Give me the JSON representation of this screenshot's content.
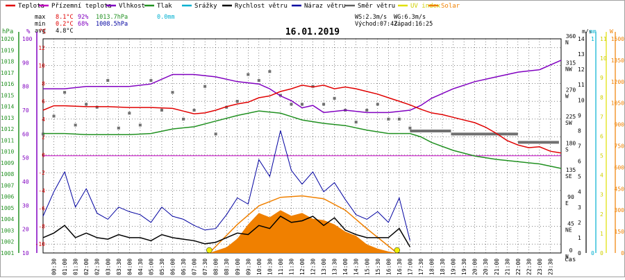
{
  "chart_data": {
    "type": "line",
    "title": "16.01.2019",
    "legend": [
      {
        "name": "Teplota",
        "color": "#e00000"
      },
      {
        "name": "Přízemní teplota",
        "color": "#c000c0"
      },
      {
        "name": "Vlhkost",
        "color": "#8000c0"
      },
      {
        "name": "Tlak",
        "color": "#209020"
      },
      {
        "name": "Srážky",
        "color": "#00b0d0"
      },
      {
        "name": "Rychlost větru",
        "color": "#000000"
      },
      {
        "name": "Náraz větru",
        "color": "#0000a0"
      },
      {
        "name": "Směr větru",
        "color": "#606060"
      },
      {
        "name": "UV index",
        "color": "#e0e000"
      },
      {
        "name": "Solar",
        "color": "#f08000"
      }
    ],
    "stats": {
      "max_label": "max",
      "max_temp": "8.1°C",
      "max_hum": "92%",
      "max_press": "1013.7hPa",
      "max_rain": "0.0mm",
      "min_label": "min",
      "min_temp": "0.2°C",
      "min_hum": "68%",
      "min_press": "1008.5hPa",
      "avg_label": "avg",
      "avg_temp": "4.8°C"
    },
    "wind_info": {
      "ws": "WS:2.3m/s",
      "wg": "WG:6.3m/s",
      "sunrise": "Východ:07:42",
      "sunset": "Západ:16:25"
    },
    "axes": {
      "hpa_unit": "hPa",
      "hpa_ticks": [
        "1001",
        "1002",
        "1003",
        "1004",
        "1005",
        "1006",
        "1007",
        "1008",
        "1009",
        "1010",
        "1011",
        "1012",
        "1013",
        "1014",
        "1015",
        "1016",
        "1017",
        "1018",
        "1019",
        "1020"
      ],
      "hpa_range": [
        1001,
        1020
      ],
      "pct_unit": "%",
      "pct_ticks": [
        "10",
        "20",
        "30",
        "40",
        "50",
        "60",
        "70",
        "80",
        "90",
        "100"
      ],
      "pct_range": [
        10,
        100
      ],
      "temp_unit": "°C",
      "temp_ticks": [
        "-10",
        "-8",
        "-6",
        "-4",
        "-2",
        "0",
        "2",
        "4",
        "6",
        "8",
        "10",
        "12"
      ],
      "temp_range": [
        -11,
        13
      ],
      "dir_ticks": [
        {
          "deg": "0",
          "dir": "N"
        },
        {
          "deg": "45",
          "dir": "NE"
        },
        {
          "deg": "90",
          "dir": "E"
        },
        {
          "deg": "135",
          "dir": "SE"
        },
        {
          "deg": "180",
          "dir": "S"
        },
        {
          "deg": "225",
          "dir": "SW"
        },
        {
          "deg": "270",
          "dir": "W"
        },
        {
          "deg": "315",
          "dir": "NW"
        },
        {
          "deg": "360",
          "dir": "N"
        }
      ],
      "ms_unit": "m/s",
      "ms_ticks": [
        "0",
        "1",
        "2",
        "3",
        "4",
        "5",
        "6",
        "7",
        "8",
        "9",
        "10",
        "11",
        "12",
        "13",
        "14"
      ],
      "ms_range": [
        0,
        14
      ],
      "mm_unit": "mm",
      "mm_ticks": [
        "0",
        "1"
      ],
      "uv_ticks": [
        "0",
        "1",
        "2",
        "3",
        "4",
        "5",
        "6",
        "7",
        "8",
        "9",
        "10",
        "11"
      ],
      "w_unit": "W",
      "w_ticks": [
        "0",
        "150",
        "300",
        "450",
        "600",
        "750",
        "900",
        "1050",
        "1200",
        "1350",
        "1500"
      ],
      "w_range": [
        0,
        1500
      ],
      "time_ticks": [
        "00:30",
        "01:00",
        "01:30",
        "02:00",
        "02:30",
        "03:00",
        "03:30",
        "04:00",
        "04:30",
        "05:00",
        "05:30",
        "06:00",
        "06:30",
        "07:00",
        "07:30",
        "08:00",
        "08:30",
        "09:00",
        "09:30",
        "10:00",
        "10:30",
        "11:00",
        "11:30",
        "12:00",
        "12:30",
        "13:00",
        "13:30",
        "14:00",
        "14:30",
        "15:00",
        "15:30",
        "16:00",
        "16:30",
        "17:00",
        "17:30",
        "18:00",
        "18:30",
        "19:00",
        "19:30",
        "20:00",
        "20:30",
        "21:00",
        "21:30",
        "22:00",
        "22:30",
        "23:00",
        "23:30"
      ],
      "time_label": "čas",
      "x_range_hours": [
        0,
        24
      ]
    },
    "series": [
      {
        "name": "Teplota",
        "axis": "temp",
        "hours": [
          0,
          0.5,
          1,
          2,
          3,
          4,
          5,
          6,
          7,
          7.5,
          8,
          8.5,
          9,
          9.5,
          10,
          10.5,
          11,
          11.5,
          12,
          12.5,
          13,
          13.5,
          14,
          14.5,
          15,
          15.5,
          16,
          16.5,
          17,
          17.5,
          18,
          18.5,
          19,
          19.5,
          20,
          20.5,
          21,
          21.5,
          22,
          22.5,
          23,
          23.5,
          24
        ],
        "values": [
          5.0,
          5.5,
          5.5,
          5.4,
          5.4,
          5.3,
          5.3,
          5.2,
          4.6,
          4.7,
          5.0,
          5.4,
          5.7,
          5.9,
          6.4,
          6.6,
          7.1,
          7.4,
          7.8,
          7.6,
          7.8,
          7.4,
          7.6,
          7.4,
          7.1,
          6.8,
          6.4,
          6.0,
          5.6,
          5.1,
          4.7,
          4.5,
          4.2,
          3.9,
          3.6,
          3.1,
          2.4,
          1.6,
          1.1,
          0.8,
          0.9,
          0.4,
          0.2
        ]
      },
      {
        "name": "Přízemní teplota",
        "axis": "temp",
        "hours": [
          0,
          24
        ],
        "values": [
          -0.1,
          -0.1
        ]
      },
      {
        "name": "Vlhkost",
        "axis": "pct",
        "hours": [
          0,
          1,
          2,
          3,
          4,
          5,
          6,
          7,
          8,
          9,
          10,
          10.5,
          11,
          11.5,
          12,
          12.5,
          13,
          14,
          15,
          16,
          17,
          17.5,
          18,
          19,
          20,
          21,
          22,
          23,
          24
        ],
        "values": [
          79,
          79,
          80,
          80,
          80,
          81,
          85,
          85,
          84,
          82,
          81,
          79,
          76,
          74,
          71,
          72,
          69,
          70,
          69,
          69,
          70,
          72,
          75,
          79,
          82,
          84,
          86,
          87,
          91
        ]
      },
      {
        "name": "Tlak",
        "axis": "hpa",
        "hours": [
          0,
          1,
          2,
          3,
          4,
          5,
          6,
          7,
          8,
          9,
          10,
          11,
          11.5,
          12,
          13,
          14,
          15,
          16,
          17,
          17.5,
          18,
          19,
          20,
          21,
          22,
          23,
          24
        ],
        "values": [
          1011.6,
          1011.6,
          1011.5,
          1011.5,
          1011.5,
          1011.6,
          1012.0,
          1012.2,
          1012.7,
          1013.2,
          1013.6,
          1013.4,
          1013.1,
          1012.8,
          1012.5,
          1012.3,
          1011.9,
          1011.6,
          1011.6,
          1011.3,
          1010.8,
          1010.1,
          1009.6,
          1009.3,
          1009.1,
          1008.9,
          1008.5
        ]
      }
    ],
    "wind_speed": {
      "axis": "ms",
      "hours": [
        0,
        0.5,
        1,
        1.5,
        2,
        2.5,
        3,
        3.5,
        4,
        4.5,
        5,
        5.5,
        6,
        6.5,
        7,
        7.5,
        8,
        8.5,
        9,
        9.5,
        10,
        10.5,
        11,
        11.5,
        12,
        12.5,
        13,
        13.5,
        14,
        14.5,
        15,
        15.5,
        16,
        16.5,
        17
      ],
      "values": [
        1.0,
        1.3,
        1.8,
        1.0,
        1.3,
        1.0,
        0.9,
        1.2,
        1.0,
        1.0,
        0.8,
        1.2,
        1.0,
        0.9,
        0.8,
        0.6,
        0.7,
        1.0,
        1.3,
        1.2,
        1.8,
        1.6,
        2.4,
        2.0,
        2.1,
        2.4,
        1.8,
        2.3,
        1.5,
        1.2,
        1.0,
        1.0,
        1.0,
        1.6,
        0.4
      ]
    },
    "wind_gust": {
      "axis": "ms",
      "hours": [
        0,
        0.5,
        1,
        1.5,
        2,
        2.5,
        3,
        3.5,
        4,
        4.5,
        5,
        5.5,
        6,
        6.5,
        7,
        7.5,
        8,
        8.5,
        9,
        9.5,
        10,
        10.5,
        11,
        11.5,
        12,
        12.5,
        13,
        13.5,
        14,
        14.5,
        15,
        15.5,
        16,
        16.5,
        17
      ],
      "values": [
        2.4,
        4.0,
        5.3,
        3.0,
        4.2,
        2.6,
        2.2,
        3.0,
        2.7,
        2.5,
        2.0,
        3.0,
        2.4,
        2.2,
        1.8,
        1.5,
        1.6,
        2.5,
        3.6,
        3.2,
        6.1,
        5.0,
        8.0,
        5.4,
        4.5,
        5.3,
        4.0,
        4.6,
        3.5,
        2.5,
        2.2,
        2.7,
        2.0,
        3.6,
        0.8
      ]
    },
    "wind_dir": {
      "axis": "deg",
      "hours": [
        0,
        0.5,
        1,
        1.5,
        2,
        2.5,
        3,
        3.5,
        4,
        4.5,
        5,
        5.5,
        6,
        6.5,
        7,
        7.5,
        8,
        8.5,
        9,
        9.5,
        10,
        10.5,
        11,
        11.5,
        12,
        12.5,
        13,
        13.5,
        14,
        14.5,
        15,
        15.5,
        16,
        16.5,
        17
      ],
      "values": [
        200,
        230,
        270,
        215,
        250,
        245,
        290,
        210,
        235,
        215,
        290,
        240,
        270,
        225,
        240,
        280,
        200,
        245,
        255,
        300,
        290,
        305,
        265,
        250,
        250,
        280,
        250,
        260,
        240,
        220,
        240,
        250,
        225,
        225,
        210
      ]
    },
    "wind_dir_const": [
      {
        "start": 17.0,
        "end": 18.9,
        "deg": 205
      },
      {
        "start": 18.9,
        "end": 22.0,
        "deg": 200
      },
      {
        "start": 22.0,
        "end": 23.9,
        "deg": 186
      }
    ],
    "solar": {
      "axis": "w",
      "hours": [
        7.7,
        8.5,
        9.0,
        9.5,
        10.0,
        10.5,
        11.0,
        11.5,
        12.0,
        12.5,
        13.0,
        13.5,
        14.0,
        14.5,
        15.0,
        15.5,
        16.0,
        16.4
      ],
      "values": [
        0,
        40,
        100,
        200,
        280,
        250,
        300,
        260,
        280,
        240,
        230,
        200,
        150,
        120,
        60,
        30,
        10,
        0
      ]
    },
    "solar_potential": {
      "axis": "w",
      "hours": [
        7.7,
        9.0,
        10.0,
        11.0,
        12.0,
        13.0,
        14.0,
        15.0,
        16.4
      ],
      "values": [
        0,
        200,
        330,
        390,
        400,
        380,
        300,
        170,
        0
      ]
    },
    "uv": {
      "hours": [
        7.7,
        16.4
      ],
      "values": [
        0,
        0
      ]
    }
  }
}
